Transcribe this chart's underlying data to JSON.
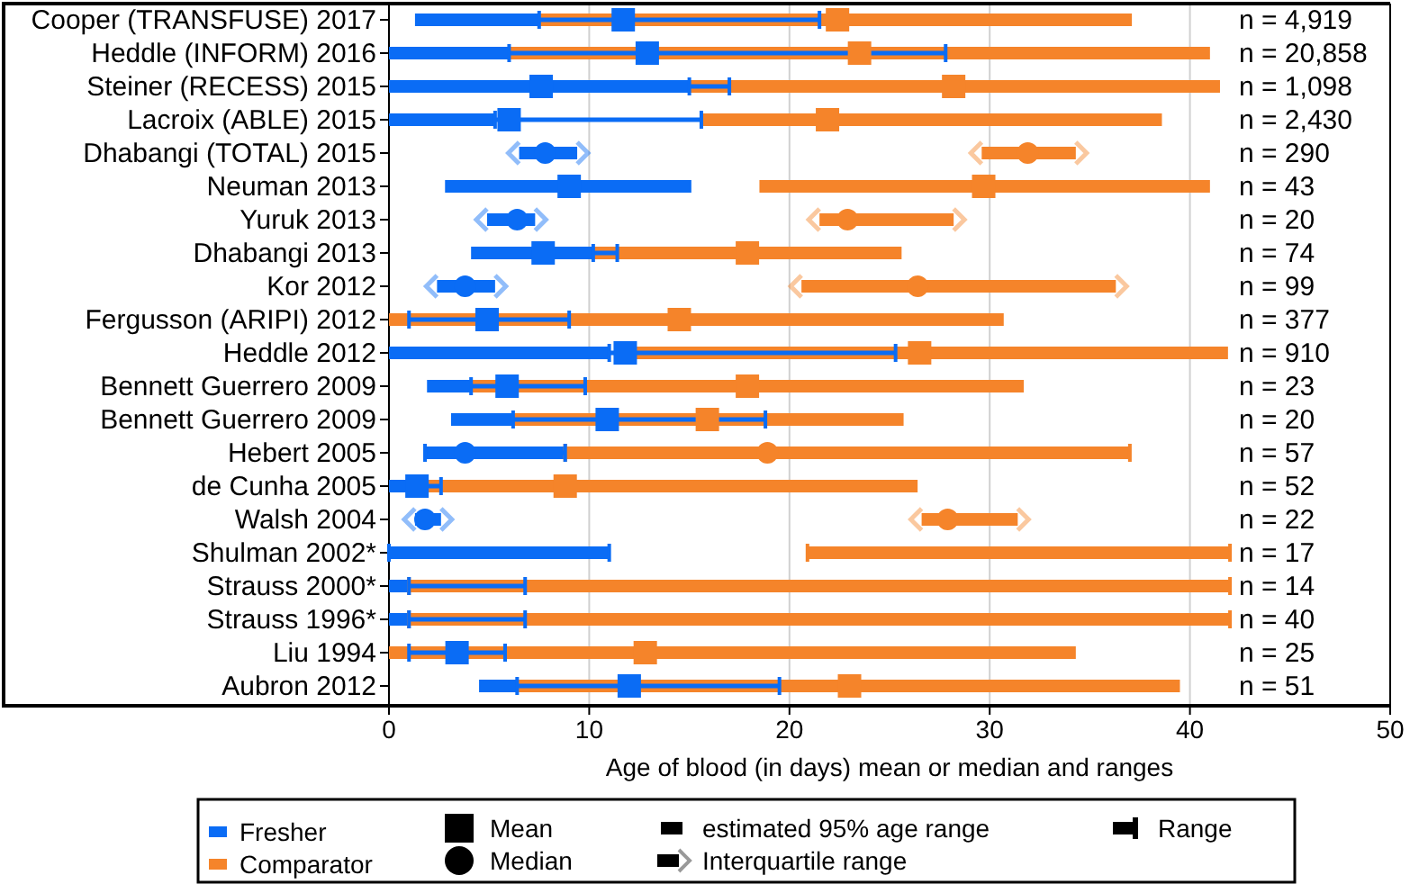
{
  "chart_data": {
    "type": "bar",
    "orientation": "horizontal",
    "xlabel": "Age of blood (in days) mean or median and ranges",
    "categories": [
      "Cooper (TRANSFUSE) 2017",
      "Heddle (INFORM) 2016",
      "Steiner (RECESS) 2015",
      "Lacroix (ABLE) 2015",
      "Dhabangi (TOTAL) 2015",
      "Neuman 2013",
      "Yuruk 2013",
      "Dhabangi 2013",
      "Kor 2012",
      "Fergusson (ARIPI) 2012",
      "Heddle 2012",
      "Bennett Guerrero 2009",
      "Bennett Guerrero 2009",
      "Hebert 2005",
      "de Cunha 2005",
      "Walsh 2004",
      "Shulman 2002*",
      "Strauss 2000*",
      "Strauss 1996*",
      "Liu 1994",
      "Aubron 2012"
    ],
    "y2_categories": [
      "n = 4,919",
      "n = 20,858",
      "n = 1,098",
      "n = 2,430",
      "n = 290",
      "n = 43",
      "n = 20",
      "n = 74",
      "n = 99",
      "n = 377",
      "n = 910",
      "n = 23",
      "n = 20",
      "n = 57",
      "n = 52",
      "n = 22",
      "n = 17",
      "n = 14",
      "n = 40",
      "n = 25",
      "n = 51"
    ],
    "xlim": [
      0,
      50
    ],
    "xticks": [
      0,
      10,
      20,
      30,
      40,
      50
    ],
    "grid": "x",
    "legend": "bottom",
    "series": [
      {
        "name": "Comparator",
        "color": "#f5842a",
        "base": [
          7.5,
          6.0,
          15.0,
          15.6,
          null,
          18.5,
          null,
          10.2,
          null,
          0,
          12.0,
          4.1,
          6.2,
          null,
          1.0,
          null,
          null,
          null,
          null,
          0,
          6.4
        ],
        "values": [
          29.6,
          35.0,
          26.5,
          23.0,
          null,
          22.5,
          null,
          15.4,
          null,
          30.7,
          29.9,
          27.6,
          19.5,
          null,
          25.4,
          null,
          null,
          null,
          null,
          34.3,
          33.1
        ]
      },
      {
        "color": "#f5842a",
        "marker": "cross",
        "base": [
          null,
          null,
          null,
          null,
          29.6,
          null,
          21.5,
          null,
          20.6,
          null,
          null,
          null,
          null,
          null,
          null,
          26.6,
          null,
          null,
          null,
          null,
          null
        ],
        "values": [
          null,
          null,
          null,
          null,
          4.7,
          null,
          6.7,
          null,
          15.7,
          null,
          null,
          null,
          null,
          null,
          null,
          4.8,
          null,
          null,
          null,
          null,
          null
        ]
      },
      {
        "color": "#f5842a",
        "base": [
          null,
          null,
          null,
          null,
          null,
          null,
          null,
          null,
          null,
          null,
          null,
          null,
          null,
          8.8,
          null,
          null,
          20.9,
          1.0,
          1.0,
          null,
          null
        ],
        "values": [
          null,
          null,
          null,
          null,
          null,
          null,
          null,
          null,
          null,
          null,
          null,
          null,
          null,
          28.2,
          null,
          null,
          21.1,
          41.0,
          41.0,
          null,
          null
        ],
        "errors": [
          null,
          null,
          null,
          null,
          null,
          null,
          null,
          null,
          null,
          null,
          null,
          null,
          null,
          [
            8.8,
            37.0
          ],
          null,
          null,
          [
            20.9,
            42.0
          ],
          [
            1.0,
            42.0
          ],
          [
            1.0,
            42.0
          ],
          null,
          null
        ]
      },
      {
        "name": "Fresher",
        "color": "#0a6cf5",
        "base": [
          1.3,
          0,
          0,
          0,
          null,
          2.8,
          null,
          4.1,
          null,
          null,
          0,
          1.9,
          3.1,
          null,
          0,
          null,
          null,
          null,
          null,
          null,
          4.5
        ],
        "values": [
          6.2,
          6.0,
          15.0,
          5.3,
          null,
          12.3,
          null,
          6.1,
          null,
          null,
          11.0,
          2.2,
          3.1,
          null,
          1.0,
          null,
          null,
          null,
          null,
          null,
          1.9
        ],
        "errors": [
          [
            7.5,
            21.5
          ],
          [
            6.0,
            27.8
          ],
          [
            15.0,
            17.0
          ],
          [
            5.3,
            15.6
          ],
          null,
          null,
          null,
          [
            10.2,
            11.4
          ],
          null,
          null,
          [
            11.0,
            25.3
          ],
          [
            4.1,
            9.8
          ],
          [
            6.2,
            18.8
          ],
          null,
          [
            1.0,
            2.6
          ],
          null,
          null,
          null,
          null,
          null,
          [
            6.4,
            19.5
          ]
        ]
      },
      {
        "color": "#0a6cf5",
        "marker": "cross",
        "base": [
          null,
          null,
          null,
          null,
          6.5,
          null,
          4.9,
          null,
          2.4,
          null,
          null,
          null,
          null,
          null,
          null,
          1.3,
          null,
          null,
          null,
          null,
          null
        ],
        "values": [
          null,
          null,
          null,
          null,
          2.9,
          null,
          2.4,
          null,
          2.9,
          null,
          null,
          null,
          null,
          null,
          null,
          1.3,
          null,
          null,
          null,
          null,
          null
        ]
      },
      {
        "color": "#0a6cf5",
        "base": [
          null,
          null,
          null,
          null,
          null,
          null,
          null,
          null,
          null,
          null,
          null,
          null,
          null,
          1.8,
          null,
          null,
          0,
          0,
          0,
          null,
          null
        ],
        "values": [
          null,
          null,
          null,
          null,
          null,
          null,
          null,
          null,
          null,
          null,
          null,
          null,
          null,
          7.0,
          null,
          null,
          11.0,
          1.0,
          1.0,
          null,
          null
        ],
        "errors": [
          null,
          null,
          null,
          null,
          null,
          null,
          null,
          null,
          null,
          null,
          null,
          null,
          null,
          [
            1.8,
            8.8
          ],
          null,
          null,
          [
            0,
            11.0
          ],
          [
            1.0,
            6.8
          ],
          [
            1.0,
            6.8
          ],
          null,
          null
        ]
      },
      {
        "type": "scatter",
        "marker": "square",
        "color": "#f5842a",
        "values": [
          22.4,
          23.5,
          28.2,
          21.9,
          null,
          29.7,
          null,
          17.9,
          null,
          14.5,
          26.5,
          17.9,
          15.9,
          null,
          8.8,
          null,
          null,
          null,
          null,
          12.8,
          23.0
        ]
      },
      {
        "type": "scatter",
        "marker": "circle",
        "color": "#f5842a",
        "values": [
          null,
          null,
          null,
          null,
          31.9,
          null,
          22.9,
          null,
          26.4,
          null,
          null,
          null,
          null,
          18.9,
          null,
          27.9,
          null,
          null,
          null,
          null,
          null
        ]
      },
      {
        "type": "scatter",
        "marker": "square",
        "color": "#0a6cf5",
        "values": [
          11.7,
          12.9,
          7.6,
          6.0,
          null,
          9.0,
          null,
          7.7,
          null,
          4.9,
          11.8,
          5.9,
          10.9,
          null,
          1.4,
          null,
          null,
          null,
          null,
          3.4,
          12.0
        ],
        "errors": [
          null,
          null,
          null,
          null,
          null,
          null,
          null,
          null,
          null,
          [
            1.0,
            9.0
          ],
          null,
          null,
          null,
          null,
          null,
          null,
          null,
          null,
          null,
          [
            1.0,
            5.8
          ],
          null
        ]
      },
      {
        "type": "scatter",
        "marker": "circle",
        "color": "#0a6cf5",
        "values": [
          null,
          null,
          null,
          null,
          7.8,
          null,
          6.4,
          null,
          3.8,
          null,
          null,
          null,
          null,
          3.8,
          null,
          1.8,
          null,
          null,
          null,
          null,
          null
        ]
      }
    ],
    "annotations": [
      "Mean",
      "Median",
      "estimated 95% age range",
      "Interquartile range",
      "Range"
    ]
  }
}
